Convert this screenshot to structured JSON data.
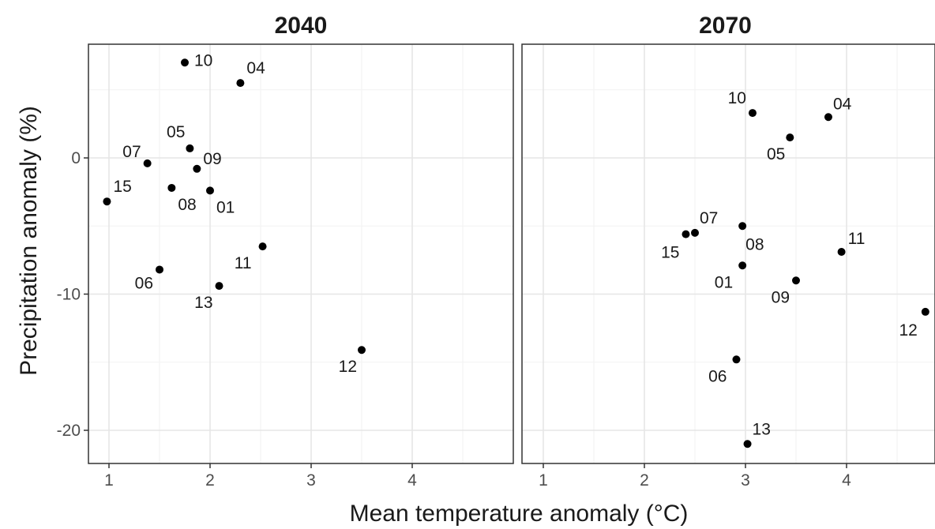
{
  "chart_data": {
    "type": "scatter",
    "xlabel": "Mean temperature anomaly (°C)",
    "ylabel": "Precipitation anomaly (%)",
    "xlim": [
      0.8,
      4.8
    ],
    "ylim": [
      -22.5,
      8.5
    ],
    "x_ticks": [
      1,
      2,
      3,
      4
    ],
    "y_ticks": [
      0,
      -10,
      -20
    ],
    "grid": true,
    "panels": [
      {
        "title": "2040",
        "points": [
          {
            "label": "10",
            "x": 1.75,
            "y": 7.0
          },
          {
            "label": "04",
            "x": 2.3,
            "y": 5.5
          },
          {
            "label": "05",
            "x": 1.8,
            "y": 0.7
          },
          {
            "label": "07",
            "x": 1.38,
            "y": -0.4
          },
          {
            "label": "09",
            "x": 1.87,
            "y": -0.8
          },
          {
            "label": "15",
            "x": 0.98,
            "y": -3.2
          },
          {
            "label": "08",
            "x": 1.62,
            "y": -2.2
          },
          {
            "label": "01",
            "x": 2.0,
            "y": -2.4
          },
          {
            "label": "11",
            "x": 2.52,
            "y": -6.5
          },
          {
            "label": "06",
            "x": 1.5,
            "y": -8.2
          },
          {
            "label": "13",
            "x": 2.09,
            "y": -9.4
          },
          {
            "label": "12",
            "x": 3.5,
            "y": -14.1
          }
        ]
      },
      {
        "title": "2070",
        "points": [
          {
            "label": "10",
            "x": 3.07,
            "y": 3.3
          },
          {
            "label": "04",
            "x": 3.82,
            "y": 3.0
          },
          {
            "label": "05",
            "x": 3.44,
            "y": 1.5
          },
          {
            "label": "07",
            "x": 2.5,
            "y": -5.5
          },
          {
            "label": "15",
            "x": 2.41,
            "y": -5.6
          },
          {
            "label": "08",
            "x": 2.97,
            "y": -5.0
          },
          {
            "label": "11",
            "x": 3.95,
            "y": -6.9
          },
          {
            "label": "01",
            "x": 2.97,
            "y": -7.9
          },
          {
            "label": "09",
            "x": 3.5,
            "y": -9.0
          },
          {
            "label": "12",
            "x": 4.78,
            "y": -11.3
          },
          {
            "label": "06",
            "x": 2.91,
            "y": -14.8
          },
          {
            "label": "13",
            "x": 3.02,
            "y": -21.0
          }
        ]
      }
    ]
  }
}
